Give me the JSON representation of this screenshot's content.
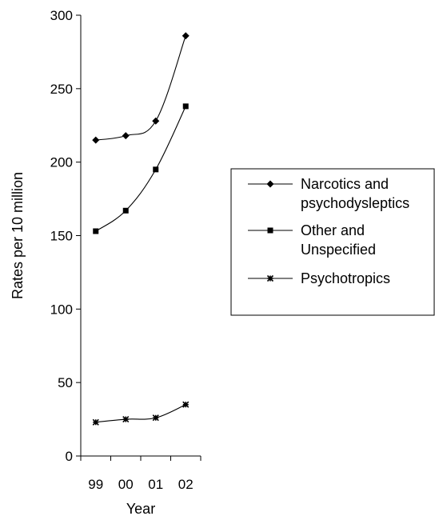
{
  "chart_data": {
    "type": "line",
    "title": "",
    "xlabel": "Year",
    "ylabel": "Rates per 10 million",
    "categories": [
      "99",
      "00",
      "01",
      "02"
    ],
    "ylim": [
      0,
      300
    ],
    "yticks": [
      0,
      50,
      100,
      150,
      200,
      250,
      300
    ],
    "grid": false,
    "legend_position": "right",
    "series": [
      {
        "name": "Narcotics and psychodysleptics",
        "legend_lines": [
          "Narcotics and",
          "psychodysleptics"
        ],
        "marker": "diamond",
        "values": [
          215,
          218,
          228,
          286
        ]
      },
      {
        "name": "Other and Unspecified",
        "legend_lines": [
          "Other and",
          "Unspecified"
        ],
        "marker": "square",
        "values": [
          153,
          167,
          195,
          238
        ]
      },
      {
        "name": "Psychotropics",
        "legend_lines": [
          "Psychotropics"
        ],
        "marker": "asterisk",
        "values": [
          23,
          25,
          26,
          35
        ]
      }
    ]
  }
}
